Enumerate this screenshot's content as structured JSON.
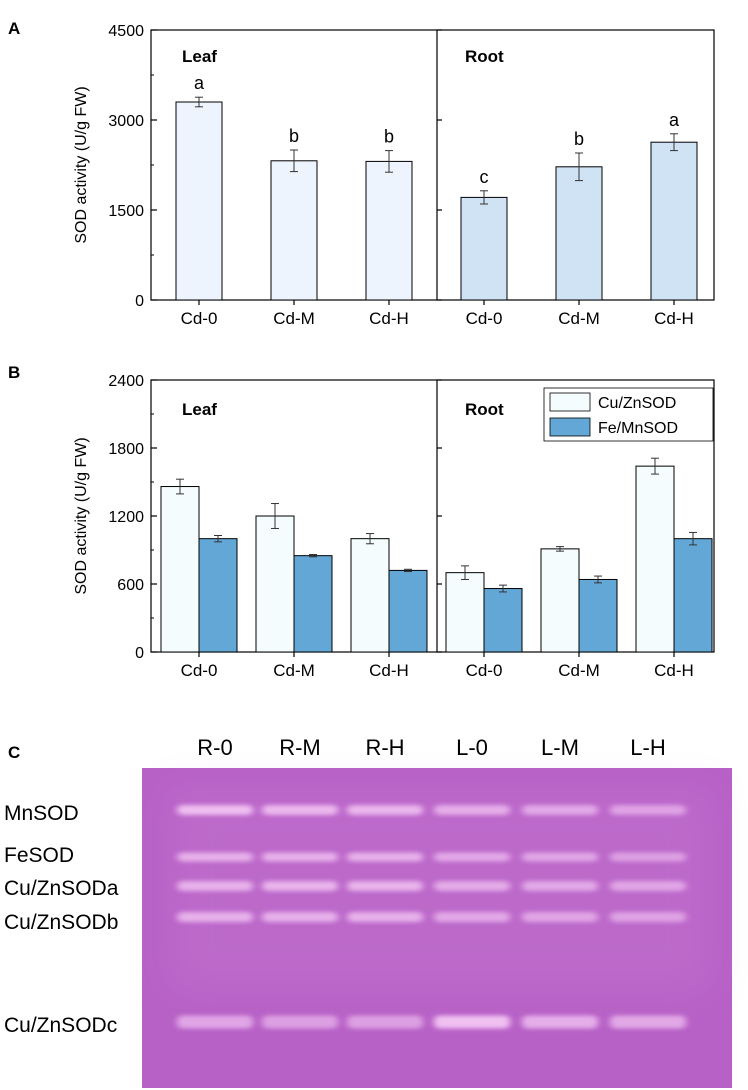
{
  "panels": {
    "a": "A",
    "b": "B",
    "c": "C"
  },
  "colors": {
    "leaf_total": "#eef4fd",
    "root_total": "#cfe3f5",
    "cuzn": "#f4fcfd",
    "femn": "#62a7d5",
    "axis": "#000000",
    "gel_base": "#b761c6",
    "band": "#f4c6f4"
  },
  "chart_data": [
    {
      "id": "A",
      "type": "bar",
      "ylabel": "SOD activity (U/g FW)",
      "ylim": [
        0,
        4500
      ],
      "yticks": [
        "0",
        "1500",
        "3000",
        "4500"
      ],
      "sections": [
        {
          "title": "Leaf",
          "categories": [
            "Cd-0",
            "Cd-M",
            "Cd-H"
          ],
          "values": [
            3300,
            2320,
            2310
          ],
          "errors": [
            80,
            180,
            180
          ],
          "letters": [
            "a",
            "b",
            "b"
          ]
        },
        {
          "title": "Root",
          "categories": [
            "Cd-0",
            "Cd-M",
            "Cd-H"
          ],
          "values": [
            1710,
            2220,
            2630
          ],
          "errors": [
            110,
            230,
            140
          ],
          "letters": [
            "c",
            "b",
            "a"
          ]
        }
      ]
    },
    {
      "id": "B",
      "type": "bar",
      "ylabel": "SOD activity (U/g FW)",
      "ylim": [
        0,
        2400
      ],
      "yticks": [
        "0",
        "600",
        "1200",
        "1800",
        "2400"
      ],
      "legend": {
        "position": "top-right",
        "entries": [
          "Cu/ZnSOD",
          "Fe/MnSOD"
        ]
      },
      "sections": [
        {
          "title": "Leaf",
          "categories": [
            "Cd-0",
            "Cd-M",
            "Cd-H"
          ],
          "series": [
            {
              "name": "Cu/ZnSOD",
              "values": [
                1460,
                1200,
                1000
              ],
              "errors": [
                65,
                110,
                45
              ]
            },
            {
              "name": "Fe/MnSOD",
              "values": [
                1000,
                850,
                720
              ],
              "errors": [
                28,
                10,
                10
              ]
            }
          ]
        },
        {
          "title": "Root",
          "categories": [
            "Cd-0",
            "Cd-M",
            "Cd-H"
          ],
          "series": [
            {
              "name": "Cu/ZnSOD",
              "values": [
                700,
                910,
                1640
              ],
              "errors": [
                60,
                20,
                70
              ]
            },
            {
              "name": "Fe/MnSOD",
              "values": [
                560,
                640,
                1000
              ],
              "errors": [
                30,
                30,
                55
              ]
            }
          ]
        }
      ]
    }
  ],
  "gel": {
    "lanes": [
      "R-0",
      "R-M",
      "R-H",
      "L-0",
      "L-M",
      "L-H"
    ],
    "bands": [
      {
        "label": "MnSOD",
        "intensity": [
          0.95,
          0.85,
          0.8,
          0.65,
          0.55,
          0.45
        ]
      },
      {
        "label": "FeSOD",
        "intensity": [
          0.7,
          0.7,
          0.7,
          0.55,
          0.5,
          0.4
        ]
      },
      {
        "label": "Cu/ZnSODa",
        "intensity": [
          0.7,
          0.75,
          0.75,
          0.6,
          0.55,
          0.5
        ]
      },
      {
        "label": "Cu/ZnSODb",
        "intensity": [
          0.7,
          0.7,
          0.7,
          0.55,
          0.5,
          0.45
        ]
      },
      {
        "label": "Cu/ZnSODc",
        "intensity": [
          0.55,
          0.45,
          0.45,
          1.0,
          0.7,
          0.6
        ]
      }
    ]
  }
}
